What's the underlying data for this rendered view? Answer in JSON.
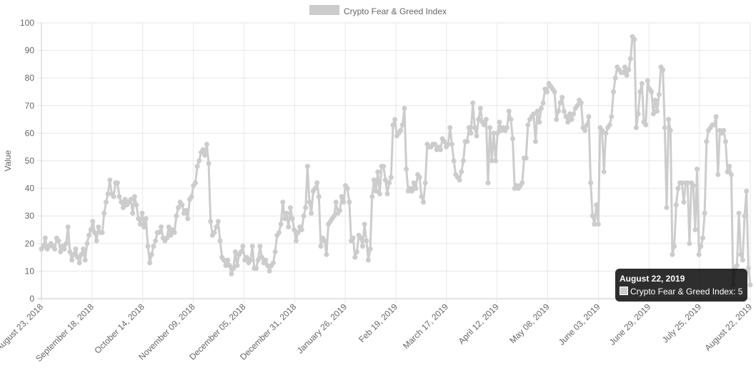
{
  "legend": {
    "label": "Crypto Fear & Greed Index"
  },
  "tooltip": {
    "title": "August 22, 2019",
    "series_label": "Crypto Fear & Greed Index",
    "value": "5",
    "line": "Crypto Fear & Greed Index: 5"
  },
  "chart_data": {
    "type": "line",
    "title": "",
    "xlabel": "",
    "ylabel": "Value",
    "ylim": [
      0,
      100
    ],
    "yticks": [
      0,
      10,
      20,
      30,
      40,
      50,
      60,
      70,
      80,
      90,
      100
    ],
    "xticks": [
      "August 23, 2018",
      "September 18, 2018",
      "October 14, 2018",
      "November 09, 2018",
      "December 05, 2018",
      "December 31, 2018",
      "January 26, 2019",
      "Feb 19, 2019",
      "March 17, 2019",
      "April 12, 2019",
      "May 08, 2019",
      "June 03, 2019",
      "June 29, 2019",
      "July 25, 2019",
      "August 22, 2019"
    ],
    "grid": true,
    "legend_position": "top",
    "color": "#cccccc",
    "series": [
      {
        "name": "Crypto Fear & Greed Index",
        "values": [
          18,
          19,
          22,
          18,
          19,
          20,
          19,
          18,
          22,
          21,
          17,
          19,
          18,
          20,
          26,
          17,
          14,
          16,
          18,
          15,
          13,
          16,
          18,
          14,
          20,
          23,
          25,
          28,
          24,
          21,
          26,
          24,
          24,
          31,
          35,
          38,
          43,
          38,
          37,
          42,
          42,
          37,
          35,
          33,
          36,
          34,
          35,
          36,
          31,
          37,
          34,
          29,
          27,
          31,
          26,
          29,
          19,
          13,
          16,
          19,
          21,
          24,
          24,
          26,
          22,
          21,
          22,
          26,
          23,
          25,
          24,
          30,
          33,
          35,
          34,
          31,
          32,
          29,
          36,
          37,
          41,
          42,
          48,
          50,
          53,
          54,
          52,
          56,
          49,
          28,
          23,
          24,
          26,
          28,
          21,
          15,
          14,
          12,
          14,
          12,
          9,
          11,
          17,
          12,
          16,
          17,
          19,
          14,
          15,
          13,
          14,
          19,
          11,
          11,
          14,
          19,
          15,
          13,
          14,
          12,
          10,
          12,
          13,
          17,
          23,
          24,
          27,
          35,
          29,
          31,
          26,
          33,
          29,
          25,
          21,
          24,
          26,
          25,
          30,
          33,
          48,
          35,
          31,
          39,
          40,
          42,
          37,
          19,
          22,
          21,
          16,
          27,
          28,
          29,
          30,
          35,
          31,
          32,
          37,
          35,
          41,
          40,
          35,
          21,
          22,
          15,
          17,
          23,
          22,
          19,
          27,
          21,
          14,
          18,
          37,
          43,
          39,
          46,
          38,
          48,
          48,
          43,
          38,
          42,
          44,
          63,
          65,
          59,
          60,
          61,
          63,
          69,
          47,
          39,
          40,
          39,
          42,
          40,
          45,
          44,
          37,
          35,
          42,
          56,
          55,
          55,
          56,
          56,
          54,
          55,
          54,
          58,
          57,
          55,
          56,
          62,
          56,
          50,
          45,
          44,
          43,
          46,
          50,
          57,
          57,
          62,
          60,
          71,
          62,
          59,
          65,
          69,
          64,
          63,
          65,
          42,
          62,
          50,
          60,
          50,
          60,
          64,
          61,
          62,
          61,
          62,
          68,
          65,
          58,
          40,
          41,
          40,
          41,
          42,
          51,
          51,
          63,
          65,
          66,
          67,
          57,
          68,
          64,
          69,
          71,
          76,
          75,
          78,
          77,
          76,
          75,
          65,
          68,
          71,
          73,
          68,
          66,
          64,
          67,
          65,
          67,
          69,
          70,
          72,
          71,
          62,
          61,
          63,
          66,
          42,
          30,
          27,
          34,
          27,
          62,
          61,
          46,
          60,
          62,
          63,
          66,
          75,
          80,
          84,
          83,
          82,
          82,
          84,
          81,
          83,
          87,
          95,
          94,
          62,
          67,
          75,
          78,
          64,
          63,
          79,
          76,
          75,
          67,
          72,
          68,
          74,
          84,
          83,
          62,
          33,
          65,
          61,
          16,
          19,
          34,
          40,
          42,
          42,
          35,
          42,
          42,
          20,
          42,
          41,
          25,
          47,
          16,
          19,
          22,
          31,
          57,
          61,
          62,
          63,
          63,
          66,
          45,
          61,
          60,
          61,
          57,
          46,
          48,
          45,
          5,
          11,
          12,
          31,
          16,
          14,
          30,
          39,
          11,
          5
        ]
      }
    ]
  }
}
